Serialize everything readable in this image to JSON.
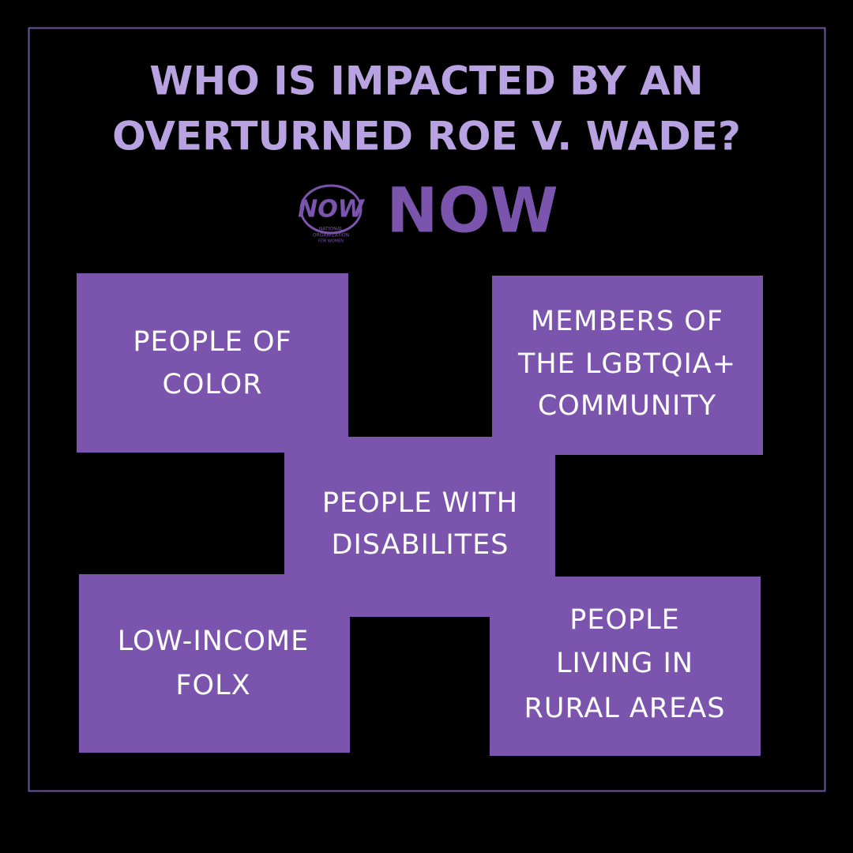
{
  "title": {
    "lines": [
      "WHO IS IMPACTED BY AN",
      "OVERTURNED ROE V. WADE?"
    ]
  },
  "logo": {
    "emblem": "NOW",
    "emblem_caption": [
      "NATIONAL",
      "ORGANIZATION",
      "FOR WOMEN"
    ],
    "wordmark": "NOW"
  },
  "boxes": [
    {
      "lines": [
        "PEOPLE OF",
        "COLOR"
      ]
    },
    {
      "lines": [
        "MEMBERS OF",
        "THE LGBTQIA+",
        "COMMUNITY"
      ]
    },
    {
      "lines": [
        "PEOPLE WITH",
        "DISABILITES"
      ]
    },
    {
      "lines": [
        "LOW-INCOME",
        "FOLX"
      ]
    },
    {
      "lines": [
        "PEOPLE",
        "LIVING IN",
        "RURAL AREAS"
      ]
    }
  ]
}
